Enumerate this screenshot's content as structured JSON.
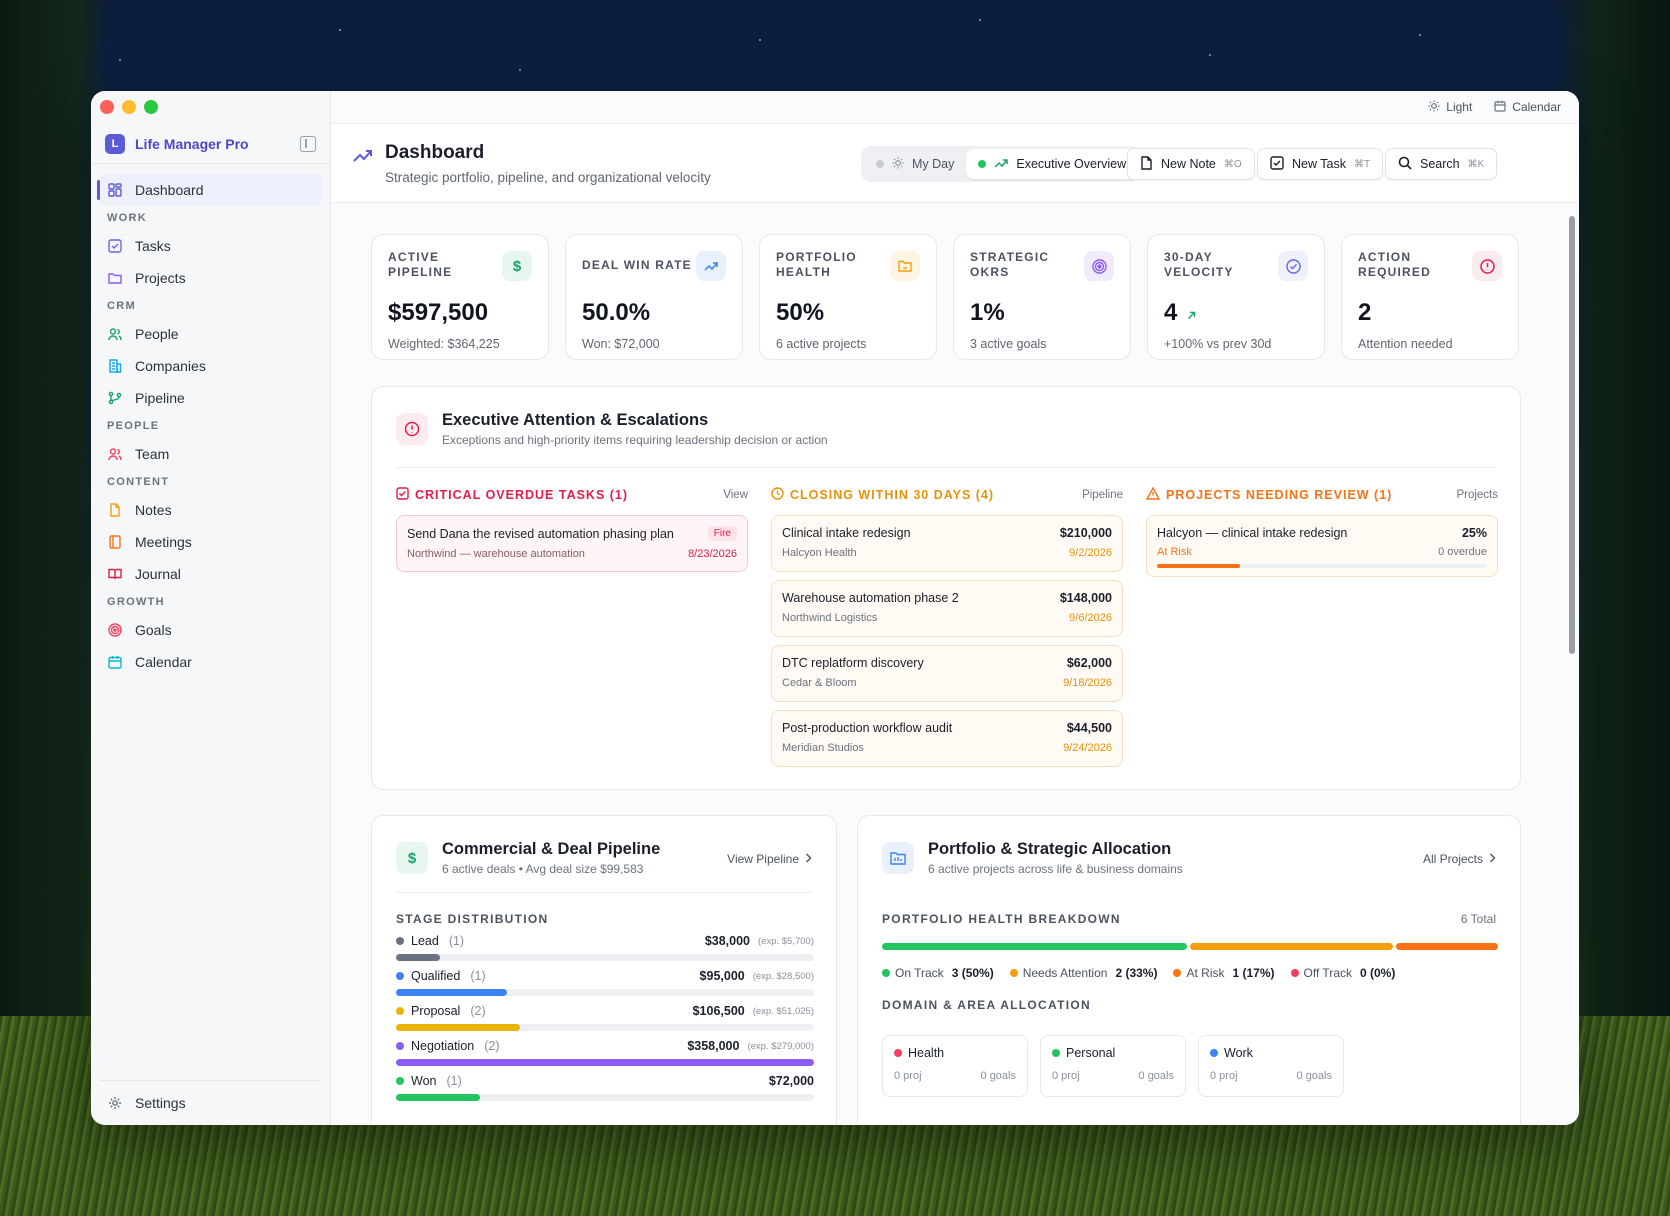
{
  "window": {
    "top_bar": {
      "light": "Light",
      "calendar": "Calendar"
    }
  },
  "sidebar": {
    "brand": "Life Manager Pro",
    "brand_logo": "L",
    "dashboard": "Dashboard",
    "sections": {
      "work": "WORK",
      "crm": "CRM",
      "people": "PEOPLE",
      "content": "CONTENT",
      "growth": "GROWTH"
    },
    "items": {
      "tasks": "Tasks",
      "projects": "Projects",
      "people": "People",
      "companies": "Companies",
      "pipeline": "Pipeline",
      "team": "Team",
      "notes": "Notes",
      "meetings": "Meetings",
      "journal": "Journal",
      "goals": "Goals",
      "calendar": "Calendar"
    },
    "settings": "Settings"
  },
  "header": {
    "title": "Dashboard",
    "subtitle": "Strategic portfolio, pipeline, and organizational velocity",
    "seg_my_day": "My Day",
    "seg_exec": "Executive Overview",
    "new_note": "New Note",
    "new_note_kbd": "⌘O",
    "new_task": "New Task",
    "new_task_kbd": "⌘T",
    "search": "Search",
    "search_kbd": "⌘K"
  },
  "kpis": [
    {
      "label": "ACTIVE PIPELINE",
      "value": "$597,500",
      "sub": "Weighted: $364,225",
      "icon": "dollar-icon",
      "color": "#16a36a",
      "bg": "#e7f7ef"
    },
    {
      "label": "DEAL WIN RATE",
      "value": "50.0%",
      "sub": "Won: $72,000",
      "icon": "trend-up-icon",
      "color": "#3b82f6",
      "bg": "#e9f1fe"
    },
    {
      "label": "PORTFOLIO HEALTH",
      "value": "50%",
      "sub": "6 active projects",
      "icon": "folder-icon",
      "color": "#f59e0b",
      "bg": "#fef4e4"
    },
    {
      "label": "STRATEGIC OKRS",
      "value": "1%",
      "sub": "3 active goals",
      "icon": "target-icon",
      "color": "#8b5cf6",
      "bg": "#f1ebfe"
    },
    {
      "label": "30-DAY VELOCITY",
      "value": "4",
      "sub": "+100% vs prev 30d",
      "icon": "check-circle-icon",
      "color": "#6366f1",
      "bg": "#eef0fc"
    },
    {
      "label": "ACTION REQUIRED",
      "value": "2",
      "sub": "Attention needed",
      "icon": "alert-circle-icon",
      "color": "#e11d48",
      "bg": "#fdecef"
    }
  ],
  "escalations": {
    "title": "Executive Attention & Escalations",
    "subtitle": "Exceptions and high-priority items requiring leadership decision or action",
    "overdue": {
      "title": "CRITICAL OVERDUE TASKS (1)",
      "link": "View",
      "items": [
        {
          "title": "Send Dana the revised automation phasing plan",
          "badge": "Fire",
          "sub": "Northwind — warehouse automation",
          "date": "8/23/2026"
        }
      ]
    },
    "closing": {
      "title": "CLOSING WITHIN 30 DAYS (4)",
      "link": "Pipeline",
      "items": [
        {
          "title": "Clinical intake redesign",
          "amount": "$210,000",
          "sub": "Halcyon Health",
          "date": "9/2/2026"
        },
        {
          "title": "Warehouse automation phase 2",
          "amount": "$148,000",
          "sub": "Northwind Logistics",
          "date": "9/6/2026"
        },
        {
          "title": "DTC replatform discovery",
          "amount": "$62,000",
          "sub": "Cedar & Bloom",
          "date": "9/18/2026"
        },
        {
          "title": "Post-production workflow audit",
          "amount": "$44,500",
          "sub": "Meridian Studios",
          "date": "9/24/2026"
        }
      ]
    },
    "review": {
      "title": "PROJECTS NEEDING REVIEW (1)",
      "link": "Projects",
      "items": [
        {
          "title": "Halcyon — clinical intake redesign",
          "pct": "25%",
          "status": "At Risk",
          "overdue": "0 overdue",
          "progress": 0.25
        }
      ]
    }
  },
  "pipeline": {
    "title": "Commercial & Deal Pipeline",
    "subtitle": "6 active deals • Avg deal size $99,583",
    "link": "View Pipeline",
    "section": "STAGE DISTRIBUTION",
    "stages": [
      {
        "name": "Lead",
        "count": "(1)",
        "value": "$38,000",
        "exp": "(exp. $5,700)",
        "color": "#6b7280",
        "fraction": 0.106
      },
      {
        "name": "Qualified",
        "count": "(1)",
        "value": "$95,000",
        "exp": "(exp. $28,500)",
        "color": "#3b82f6",
        "fraction": 0.265
      },
      {
        "name": "Proposal",
        "count": "(2)",
        "value": "$106,500",
        "exp": "(exp. $51,025)",
        "color": "#eab308",
        "fraction": 0.297
      },
      {
        "name": "Negotiation",
        "count": "(2)",
        "value": "$358,000",
        "exp": "(exp. $279,000)",
        "color": "#8b5cf6",
        "fraction": 1.0
      },
      {
        "name": "Won",
        "count": "(1)",
        "value": "$72,000",
        "exp": "",
        "color": "#22c55e",
        "fraction": 0.201
      }
    ]
  },
  "portfolio": {
    "title": "Portfolio & Strategic Allocation",
    "subtitle": "6 active projects across life & business domains",
    "link": "All Projects",
    "breakdown_title": "PORTFOLIO HEALTH BREAKDOWN",
    "total": "6 Total",
    "health": [
      {
        "label": "On Track",
        "value": "3 (50%)",
        "color": "#22c55e",
        "fraction": 0.5
      },
      {
        "label": "Needs Attention",
        "value": "2 (33%)",
        "color": "#f59e0b",
        "fraction": 0.333
      },
      {
        "label": "At Risk",
        "value": "1 (17%)",
        "color": "#f97316",
        "fraction": 0.167
      },
      {
        "label": "Off Track",
        "value": "0 (0%)",
        "color": "#f43f5e",
        "fraction": 0
      }
    ],
    "domain_title": "DOMAIN & AREA ALLOCATION",
    "domains": [
      {
        "name": "Health",
        "proj": "0 proj",
        "goals": "0 goals",
        "color": "#f43f5e"
      },
      {
        "name": "Personal",
        "proj": "0 proj",
        "goals": "0 goals",
        "color": "#22c55e"
      },
      {
        "name": "Work",
        "proj": "0 proj",
        "goals": "0 goals",
        "color": "#3b82f6"
      }
    ]
  }
}
